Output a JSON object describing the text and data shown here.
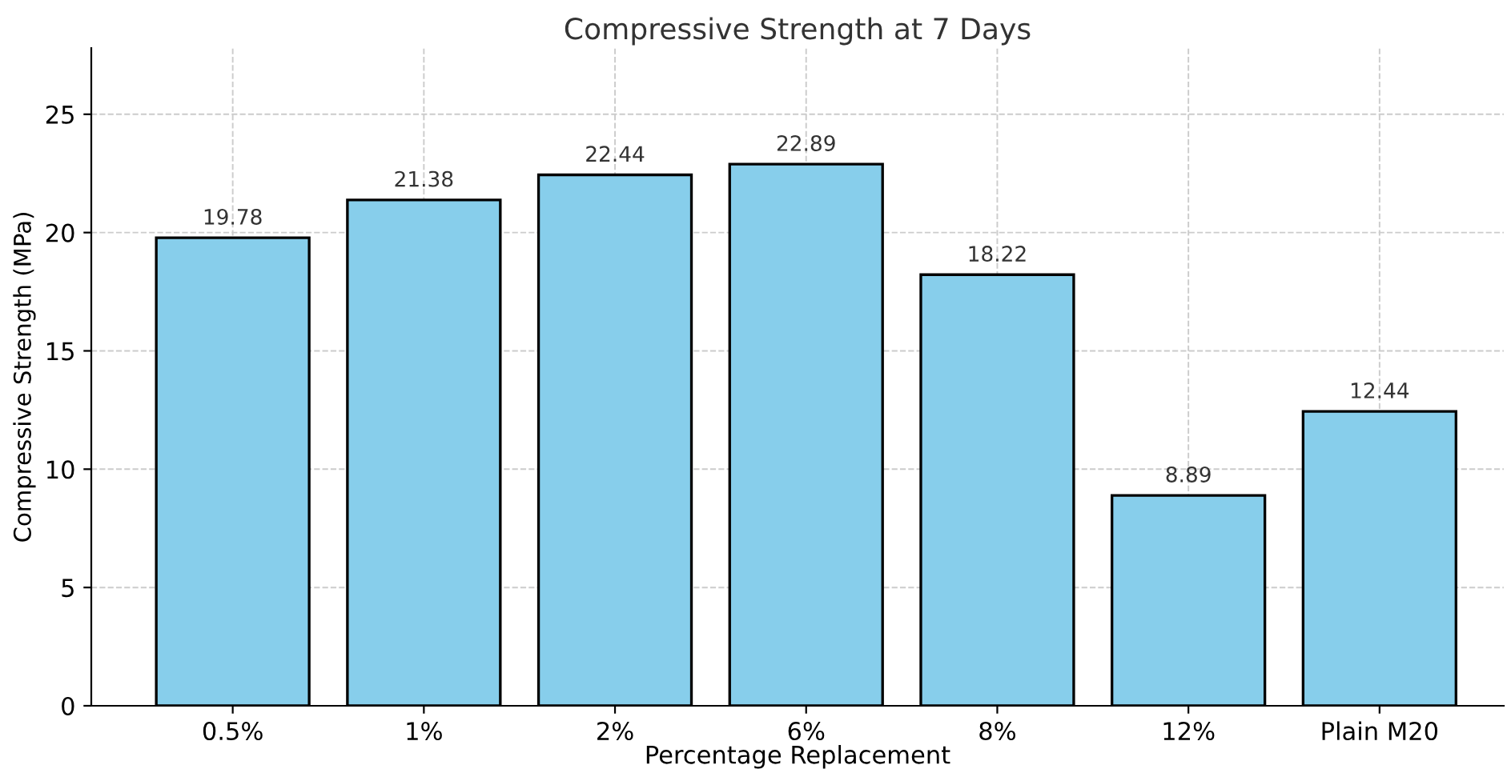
{
  "chart_data": {
    "type": "bar",
    "title": "Compressive Strength at 7 Days",
    "xlabel": "Percentage Replacement",
    "ylabel": "Compressive Strength (MPa)",
    "categories": [
      "0.5%",
      "1%",
      "2%",
      "6%",
      "8%",
      "12%",
      "Plain M20"
    ],
    "values": [
      19.78,
      21.38,
      22.44,
      22.89,
      18.22,
      8.89,
      12.44
    ],
    "color": "#87ceeb",
    "ylim": [
      0,
      27.8
    ],
    "yticks": [
      0,
      5,
      10,
      15,
      20,
      25
    ],
    "grid": true,
    "data_labels": true
  }
}
